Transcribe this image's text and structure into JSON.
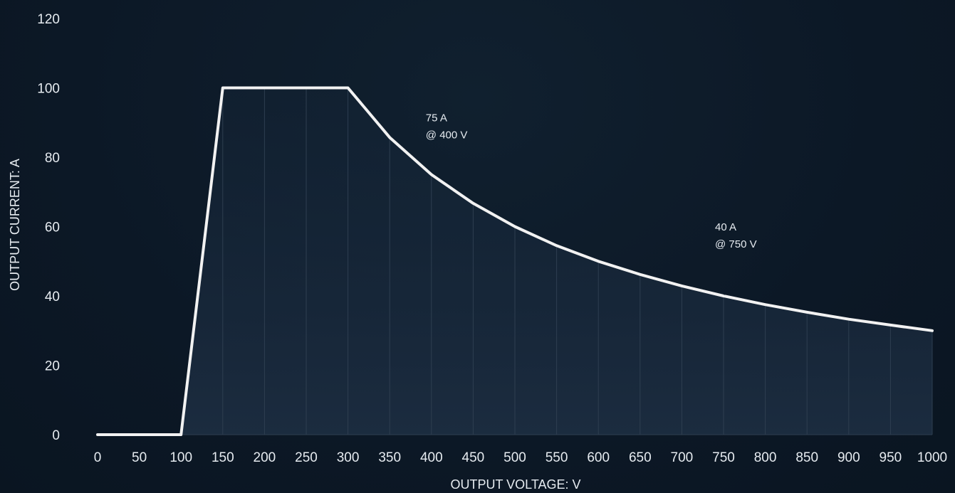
{
  "chart_data": {
    "type": "area",
    "title": "",
    "xlabel": "OUTPUT VOLTAGE: V",
    "ylabel": "OUTPUT CURRENT: A",
    "xlim": [
      0,
      1000
    ],
    "ylim": [
      0,
      120
    ],
    "x_ticks": [
      0,
      50,
      100,
      150,
      200,
      250,
      300,
      350,
      400,
      450,
      500,
      550,
      600,
      650,
      700,
      750,
      800,
      850,
      900,
      950,
      1000
    ],
    "y_ticks": [
      0,
      20,
      40,
      60,
      80,
      100,
      120
    ],
    "grid": "vertical",
    "colors": {
      "background": "#0c1826",
      "line": "#f2f2f2",
      "grid": "#2e3e50",
      "text": "#e6ebf0"
    },
    "series": [
      {
        "x": [
          0,
          100,
          150,
          200,
          250,
          300,
          350,
          400,
          450,
          500,
          550,
          600,
          650,
          700,
          750,
          800,
          850,
          900,
          950,
          1000
        ],
        "y": [
          0,
          0,
          100,
          100,
          100,
          100,
          85.7,
          75,
          66.7,
          60,
          54.5,
          50,
          46.2,
          42.9,
          40,
          37.5,
          35.3,
          33.3,
          31.6,
          30
        ]
      }
    ],
    "annotations": [
      {
        "lines": [
          "75 A",
          "@ 400 V"
        ],
        "x": 400,
        "y": 75
      },
      {
        "lines": [
          "40 A",
          "@ 750 V"
        ],
        "x": 750,
        "y": 40
      }
    ]
  }
}
